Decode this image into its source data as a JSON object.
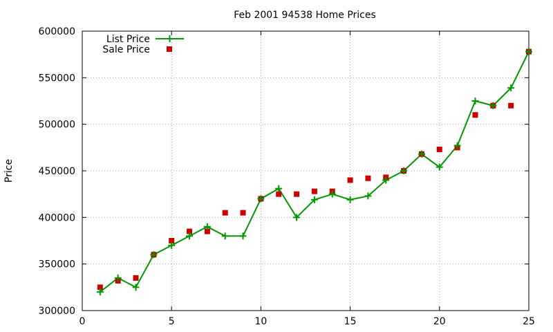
{
  "chart_data": {
    "type": "line",
    "title": "Feb 2001 94538 Home Prices",
    "xlabel": "",
    "ylabel": "Price",
    "xlim": [
      0,
      25
    ],
    "ylim": [
      300000,
      600000
    ],
    "xticks": [
      0,
      5,
      10,
      15,
      20,
      25
    ],
    "yticks": [
      300000,
      350000,
      400000,
      450000,
      500000,
      550000,
      600000
    ],
    "xtick_labels": [
      "0",
      "5",
      "10",
      "15",
      "20",
      "25"
    ],
    "ytick_labels": [
      "300000",
      "350000",
      "400000",
      "450000",
      "500000",
      "550000",
      "600000"
    ],
    "grid": true,
    "legend_position": "top-left",
    "series": [
      {
        "name": "List Price",
        "style": "line-with-plus-markers",
        "color": "#009900",
        "x": [
          1,
          2,
          3,
          4,
          5,
          6,
          7,
          8,
          9,
          10,
          11,
          12,
          13,
          14,
          15,
          16,
          17,
          18,
          19,
          20,
          21,
          22,
          23,
          24,
          25
        ],
        "y": [
          320000,
          335000,
          325000,
          360000,
          370000,
          380000,
          390000,
          380000,
          380000,
          420000,
          431000,
          400000,
          419000,
          425000,
          419000,
          423000,
          440000,
          450000,
          468000,
          454000,
          477000,
          525000,
          520000,
          539000,
          578000
        ]
      },
      {
        "name": "Sale Price",
        "style": "square-markers",
        "color": "#cc0000",
        "x": [
          1,
          2,
          3,
          4,
          5,
          6,
          7,
          8,
          9,
          10,
          11,
          12,
          13,
          14,
          15,
          16,
          17,
          18,
          19,
          20,
          21,
          22,
          23,
          24,
          25
        ],
        "y": [
          325000,
          332000,
          335000,
          360000,
          375000,
          385000,
          385000,
          405000,
          405000,
          420000,
          425000,
          425000,
          428000,
          428000,
          440000,
          442000,
          443000,
          450000,
          468000,
          473000,
          475000,
          510000,
          520000,
          520000,
          578000
        ]
      }
    ]
  }
}
